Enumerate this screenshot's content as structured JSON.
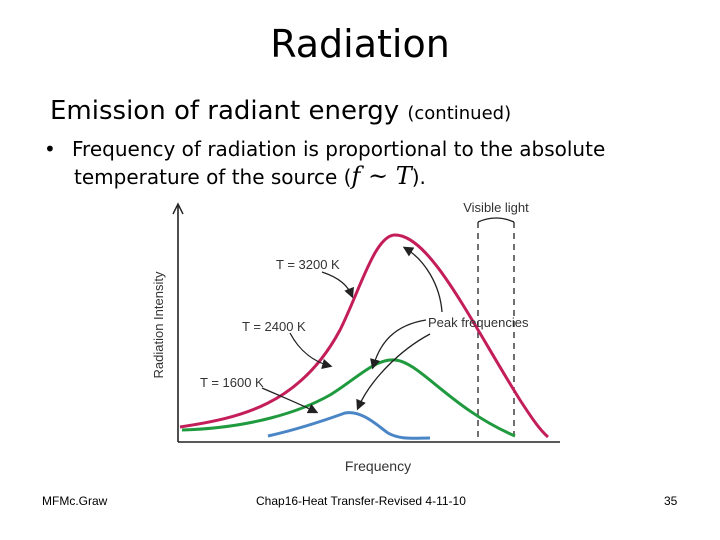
{
  "slide": {
    "title": "Radiation",
    "subtitle_main": "Emission of radiant energy",
    "subtitle_small": "(continued)",
    "bullet_line1": "Frequency of radiation is proportional to the absolute",
    "bullet_line2_prefix": "temperature of the source (",
    "formula": "f ~ T",
    "bullet_line2_suffix": ")."
  },
  "diagram": {
    "y_axis_label": "Radiation Intensity",
    "x_axis_label": "Frequency",
    "visible_light_label": "Visible light",
    "peak_label": "Peak frequencies",
    "curves": [
      {
        "label": "T = 3200 K",
        "color": "#c41e5a"
      },
      {
        "label": "T = 2400 K",
        "color": "#1f9a3e"
      },
      {
        "label": "T = 1600 K",
        "color": "#4a86c6"
      }
    ]
  },
  "footer": {
    "left": "MFMc.Graw",
    "center": "Chap16-Heat Transfer-Revised 4-11-10",
    "page": "35"
  }
}
